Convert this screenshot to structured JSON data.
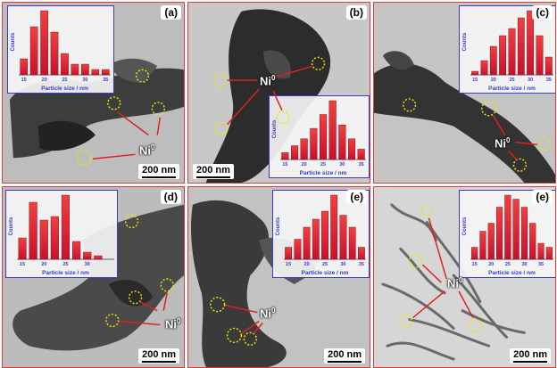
{
  "panels": [
    {
      "label": "(a)",
      "scale": "200 nm",
      "ni_label": "Ni",
      "ni_sup": "0"
    },
    {
      "label": "(b)",
      "scale": "200 nm",
      "ni_label": "Ni",
      "ni_sup": "0"
    },
    {
      "label": "(c)",
      "scale": "200 nm",
      "ni_label": "Ni",
      "ni_sup": "0"
    },
    {
      "label": "(d)",
      "scale": "200 nm",
      "ni_label": "Ni",
      "ni_sup": "0"
    },
    {
      "label": "(e)",
      "scale": "200 nm",
      "ni_label": "Ni",
      "ni_sup": "0"
    },
    {
      "label": "(e)",
      "scale": "200 nm",
      "ni_label": "Ni",
      "ni_sup": "0"
    }
  ],
  "chart_data": [
    {
      "type": "bar",
      "ylabel": "Counts",
      "xlabel": "Particle size / nm",
      "x": [
        15,
        17.5,
        20,
        22.5,
        25,
        27.5,
        30,
        32.5,
        35
      ],
      "values": [
        3,
        9,
        12,
        8,
        4,
        2,
        2,
        1,
        1
      ],
      "ticks": [
        15,
        20,
        25,
        30,
        35
      ],
      "colors": {
        "bar": "#c8102e"
      }
    },
    {
      "type": "bar",
      "ylabel": "Counts",
      "xlabel": "Particle size / nm",
      "x": [
        15,
        17.5,
        20,
        22.5,
        25,
        27.5,
        30,
        32.5,
        35
      ],
      "values": [
        2,
        4,
        6,
        9,
        13,
        17,
        10,
        6,
        3
      ],
      "ticks": [
        15,
        20,
        25,
        30,
        35
      ],
      "colors": {
        "bar": "#c8102e"
      }
    },
    {
      "type": "bar",
      "ylabel": "Counts",
      "xlabel": "Particle size / nm",
      "x": [
        15,
        17.5,
        20,
        22.5,
        25,
        27.5,
        30,
        32.5,
        35
      ],
      "values": [
        1,
        4,
        8,
        11,
        13,
        16,
        18,
        11,
        5
      ],
      "ticks": [
        15,
        20,
        25,
        30,
        35
      ],
      "colors": {
        "bar": "#c8102e"
      }
    },
    {
      "type": "bar",
      "ylabel": "Counts",
      "xlabel": "Particle size / nm",
      "x": [
        15,
        17.5,
        20,
        22.5,
        25,
        27.5,
        30,
        32.5,
        35
      ],
      "values": [
        6,
        16,
        11,
        12,
        18,
        5,
        2,
        1,
        0
      ],
      "ticks": [
        15,
        20,
        25,
        30
      ],
      "colors": {
        "bar": "#c8102e"
      }
    },
    {
      "type": "bar",
      "ylabel": "Counts",
      "xlabel": "Particle size / nm",
      "x": [
        15,
        17.5,
        20,
        22.5,
        25,
        27.5,
        30,
        32.5,
        35
      ],
      "values": [
        3,
        5,
        8,
        10,
        12,
        16,
        11,
        8,
        3
      ],
      "ticks": [
        15,
        20,
        25,
        30,
        35
      ],
      "colors": {
        "bar": "#c8102e"
      }
    },
    {
      "type": "bar",
      "ylabel": "Counts",
      "xlabel": "Particle size / nm",
      "x": [
        15,
        17.5,
        20,
        22.5,
        25,
        27.5,
        30,
        32.5,
        35,
        37.5
      ],
      "values": [
        3,
        7,
        9,
        13,
        16,
        15,
        13,
        9,
        4,
        3
      ],
      "ticks": [
        15,
        20,
        25,
        30,
        35,
        40
      ],
      "colors": {
        "bar": "#c8102e"
      }
    }
  ]
}
